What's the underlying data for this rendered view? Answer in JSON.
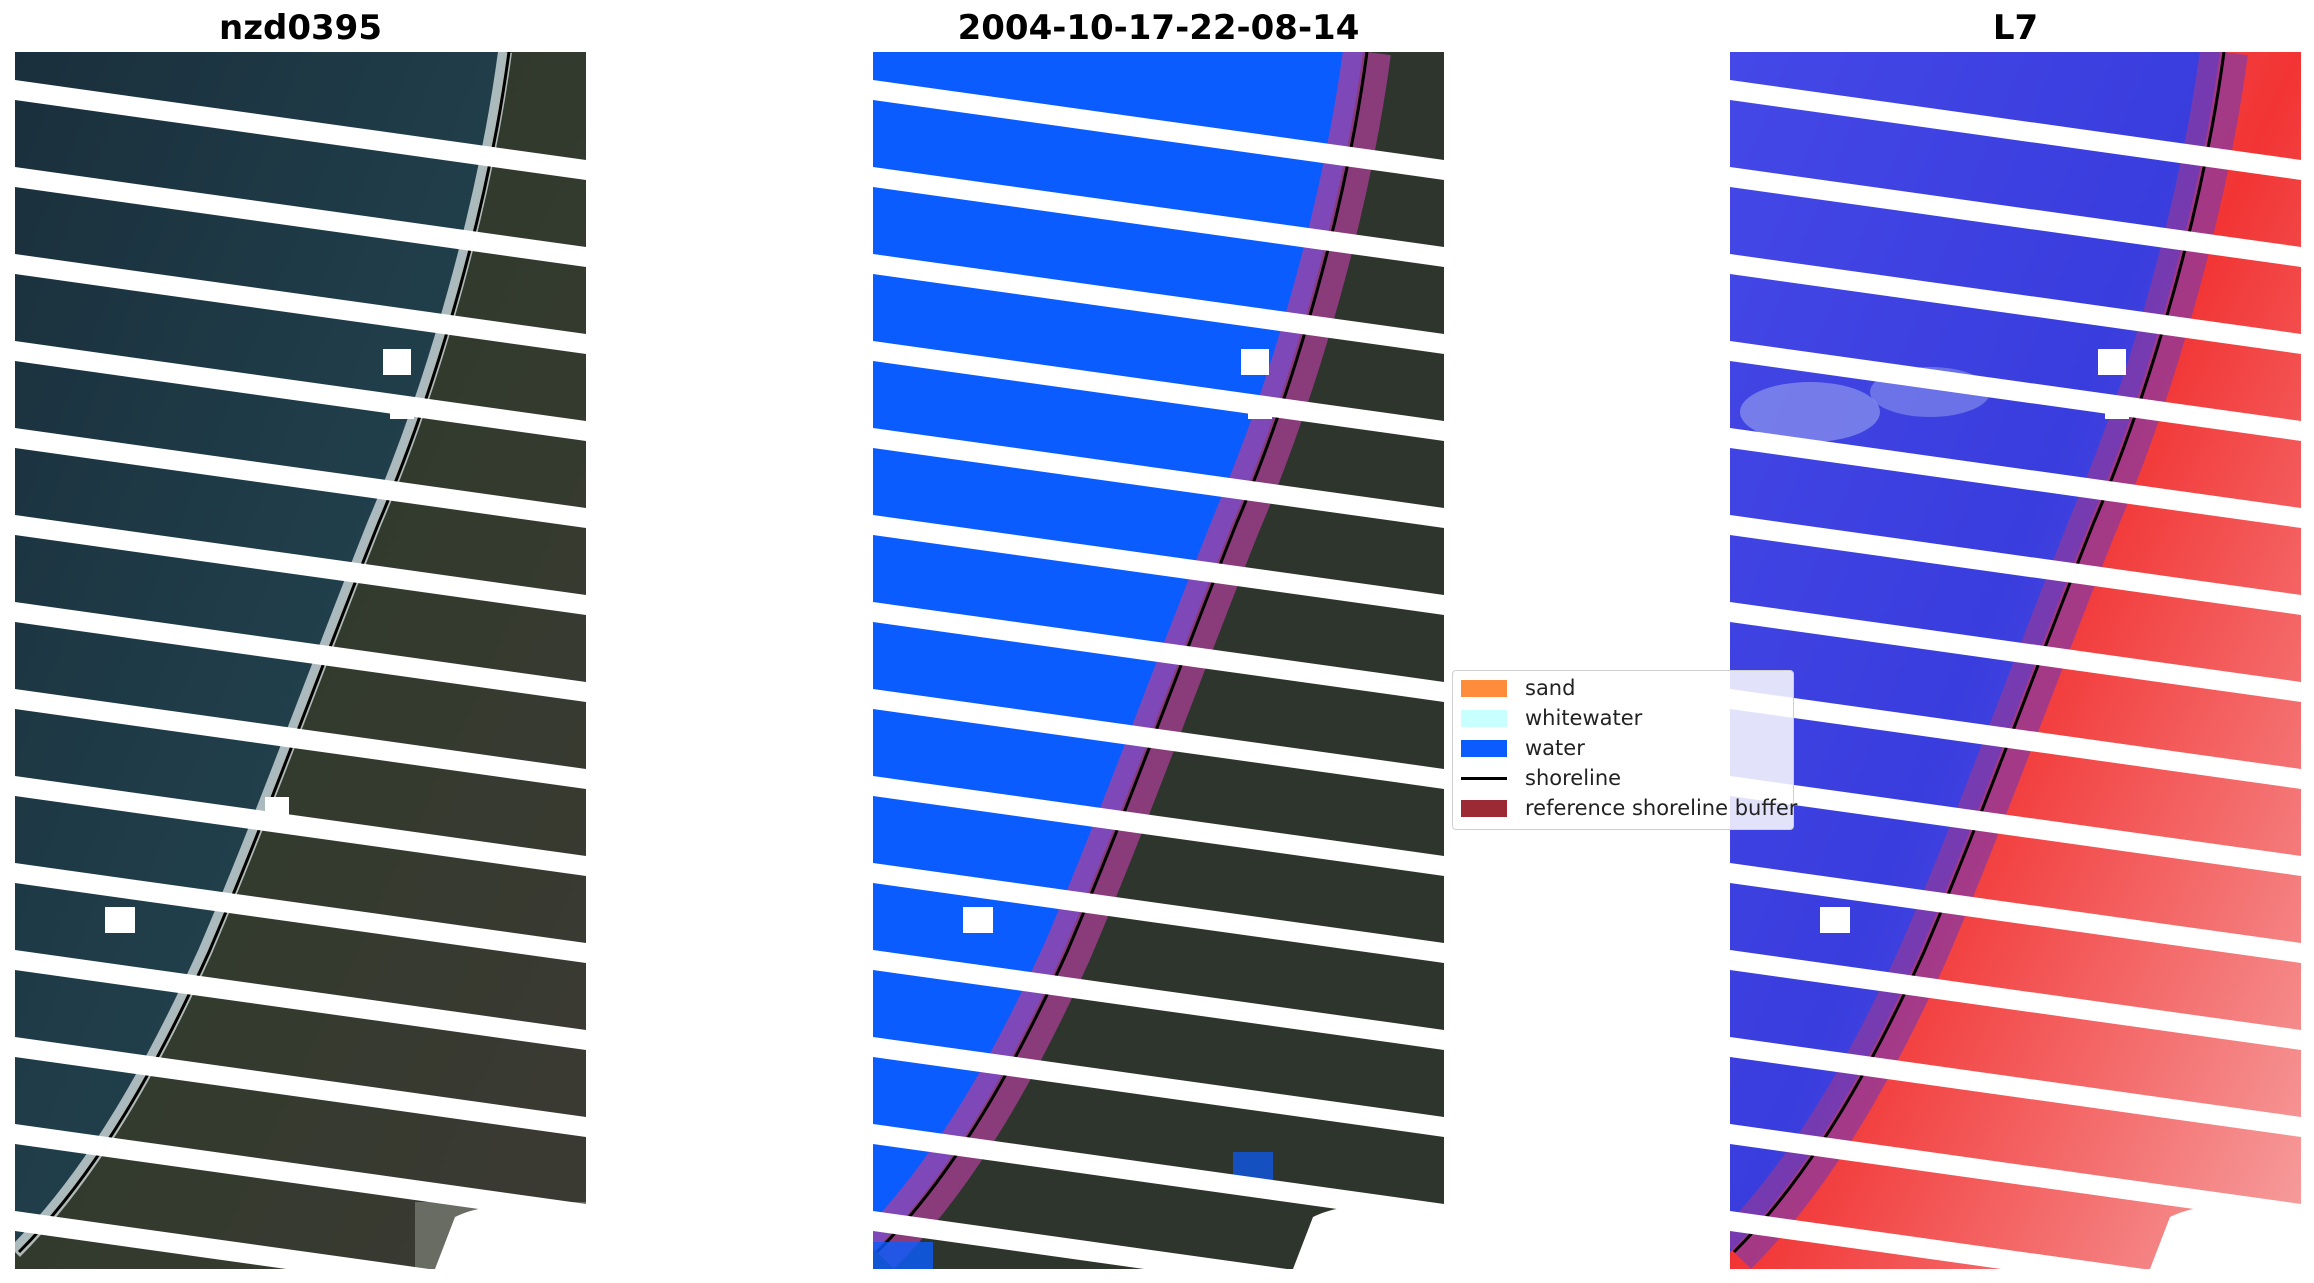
{
  "titles": {
    "rgb": "nzd0395",
    "classified": "2004-10-17-22-08-14",
    "mndwi": "L7"
  },
  "legend": {
    "items": [
      {
        "label": "sand",
        "color": "#ff8c3a",
        "kind": "patch"
      },
      {
        "label": "whitewater",
        "color": "#c8ffff",
        "kind": "patch"
      },
      {
        "label": "water",
        "color": "#0a5cff",
        "kind": "patch"
      },
      {
        "label": "shoreline",
        "color": "#000000",
        "kind": "line"
      },
      {
        "label": "reference shoreline buffer",
        "color": "#9b2a35",
        "kind": "patch"
      }
    ]
  },
  "colors": {
    "land": "#2a3228",
    "ocean": "#1c3443",
    "water_class": "#0a5cff",
    "buffer": "#8a2a8a",
    "index_water": "#3a3de0",
    "index_land": "#f03030",
    "scanline_gap": "#ffffff"
  }
}
